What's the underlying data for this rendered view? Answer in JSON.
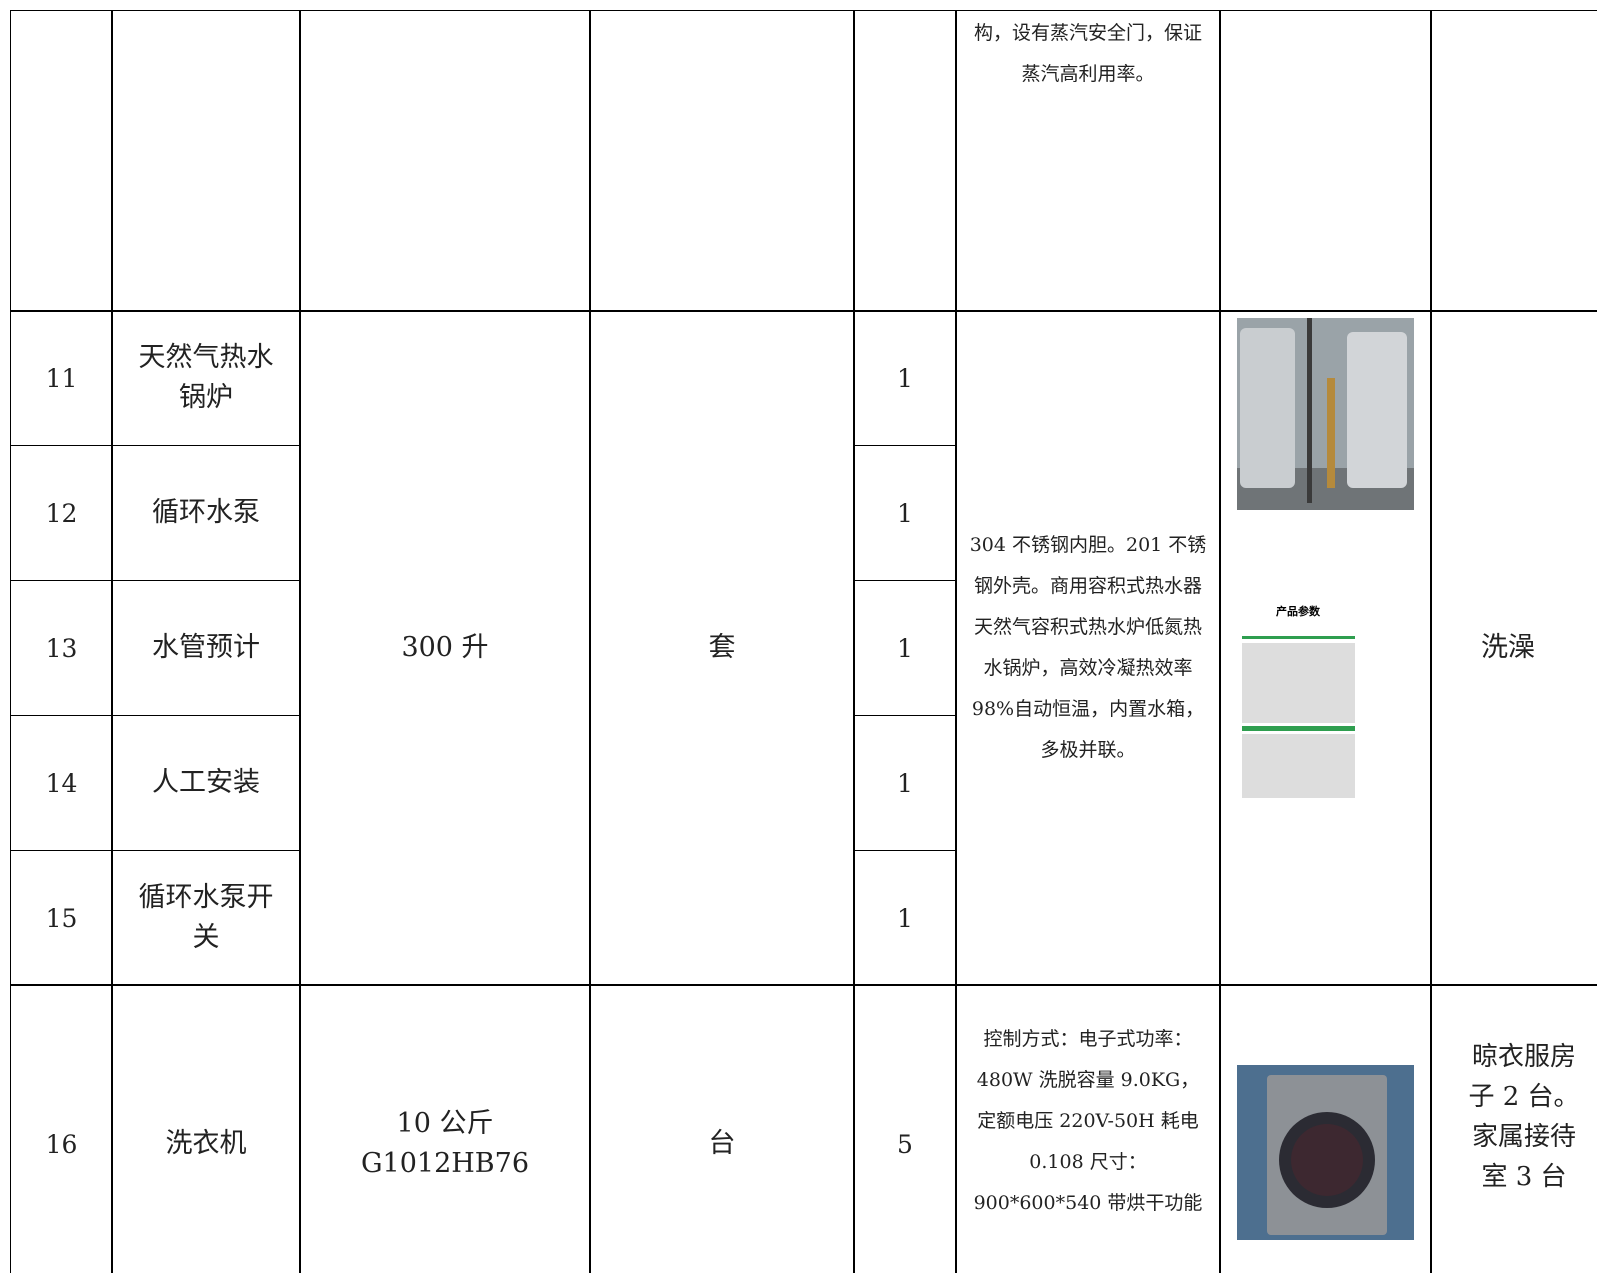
{
  "table": {
    "top_row": {
      "description": "构，设有蒸汽安全门，保证蒸汽高利用率。"
    },
    "group": {
      "spec": "300 升",
      "unit": "套",
      "description": "304 不锈钢内胆。201 不锈钢外壳。商用容积式热水器天然气容积式热水炉低氮热水锅炉，高效冷凝热效率 98%自动恒温，内置水箱，多极并联。",
      "image_caption": "产品参数",
      "purpose": "洗澡",
      "items": [
        {
          "no": 11,
          "name": "天然气热水锅炉",
          "qty": 1
        },
        {
          "no": 12,
          "name": "循环水泵",
          "qty": 1
        },
        {
          "no": 13,
          "name": "水管预计",
          "qty": 1
        },
        {
          "no": 14,
          "name": "人工安装",
          "qty": 1
        },
        {
          "no": 15,
          "name": "循环水泵开关",
          "qty": 1
        }
      ]
    },
    "last_row": {
      "no": 16,
      "name": "洗衣机",
      "spec": "10 公斤 G1012HB76",
      "unit": "台",
      "qty": 5,
      "description": "控制方式：电子式功率：480W 洗脱容量 9.0KG，定额电压 220V-50H 耗电 0.108 尺寸：900*600*540 带烘干功能",
      "purpose": "晾衣服房子 2 台。家属接待室 3 台"
    }
  }
}
